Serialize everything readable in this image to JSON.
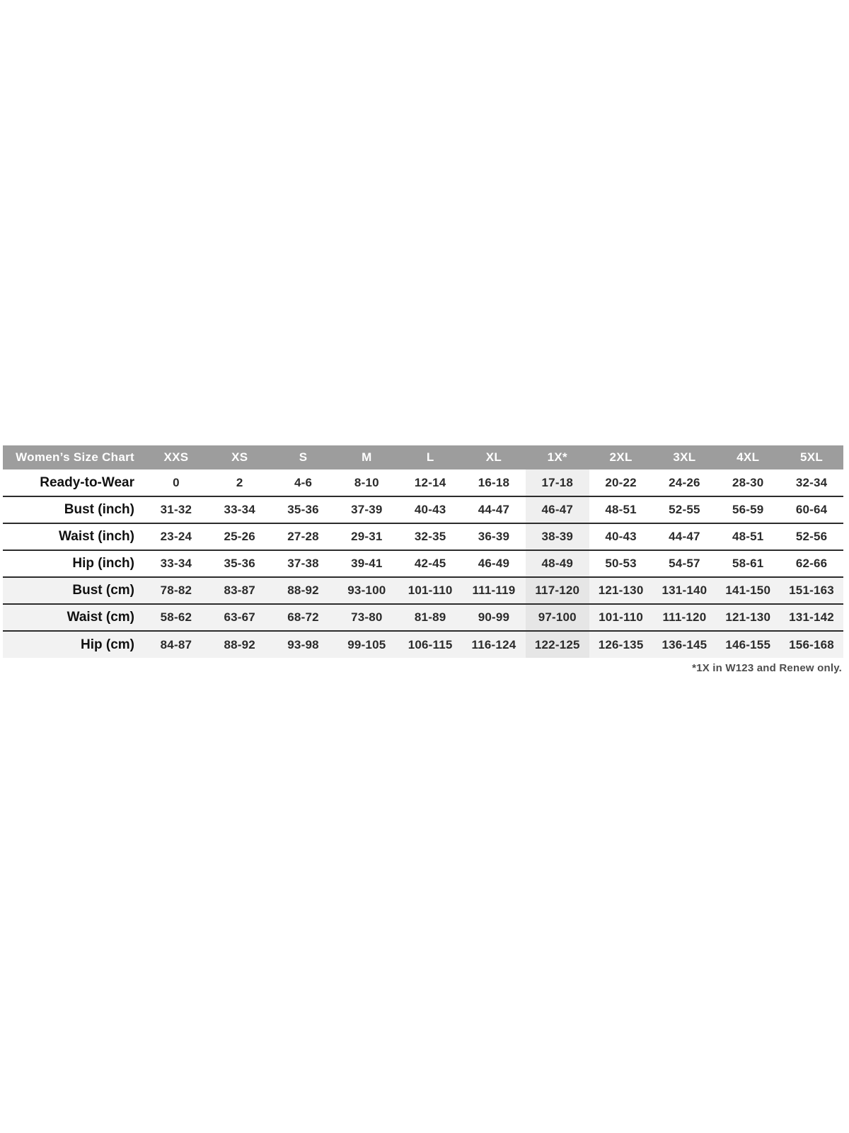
{
  "table": {
    "title": "Women’s Size Chart",
    "columns": [
      "XXS",
      "XS",
      "S",
      "M",
      "L",
      "XL",
      "1X*",
      "2XL",
      "3XL",
      "4XL",
      "5XL"
    ],
    "highlight_column": "1X*",
    "rows": [
      {
        "label": "Ready-to-Wear",
        "shaded": false,
        "values": [
          "0",
          "2",
          "4-6",
          "8-10",
          "12-14",
          "16-18",
          "17-18",
          "20-22",
          "24-26",
          "28-30",
          "32-34"
        ]
      },
      {
        "label": "Bust (inch)",
        "shaded": false,
        "values": [
          "31-32",
          "33-34",
          "35-36",
          "37-39",
          "40-43",
          "44-47",
          "46-47",
          "48-51",
          "52-55",
          "56-59",
          "60-64"
        ]
      },
      {
        "label": "Waist (inch)",
        "shaded": false,
        "values": [
          "23-24",
          "25-26",
          "27-28",
          "29-31",
          "32-35",
          "36-39",
          "38-39",
          "40-43",
          "44-47",
          "48-51",
          "52-56"
        ]
      },
      {
        "label": "Hip (inch)",
        "shaded": false,
        "values": [
          "33-34",
          "35-36",
          "37-38",
          "39-41",
          "42-45",
          "46-49",
          "48-49",
          "50-53",
          "54-57",
          "58-61",
          "62-66"
        ]
      },
      {
        "label": "Bust (cm)",
        "shaded": true,
        "values": [
          "78-82",
          "83-87",
          "88-92",
          "93-100",
          "101-110",
          "111-119",
          "117-120",
          "121-130",
          "131-140",
          "141-150",
          "151-163"
        ]
      },
      {
        "label": "Waist (cm)",
        "shaded": true,
        "values": [
          "58-62",
          "63-67",
          "68-72",
          "73-80",
          "81-89",
          "90-99",
          "97-100",
          "101-110",
          "111-120",
          "121-130",
          "131-142"
        ]
      },
      {
        "label": "Hip (cm)",
        "shaded": true,
        "values": [
          "84-87",
          "88-92",
          "93-98",
          "99-105",
          "106-115",
          "116-124",
          "122-125",
          "126-135",
          "136-145",
          "146-155",
          "156-168"
        ]
      }
    ],
    "footnote": "*1X in W123 and Renew only."
  },
  "colors": {
    "header_bg": "#9d9d9d",
    "header_text": "#ffffff",
    "shaded_row_bg": "#f2f2f2",
    "highlight_col_bg": "#efefef",
    "highlight_on_shaded_bg": "#e6e6e6",
    "row_border": "#2c2c2c",
    "data_text": "#2b2b2b",
    "label_text": "#111111",
    "footnote_text": "#4d4d4d",
    "page_bg": "#ffffff"
  }
}
